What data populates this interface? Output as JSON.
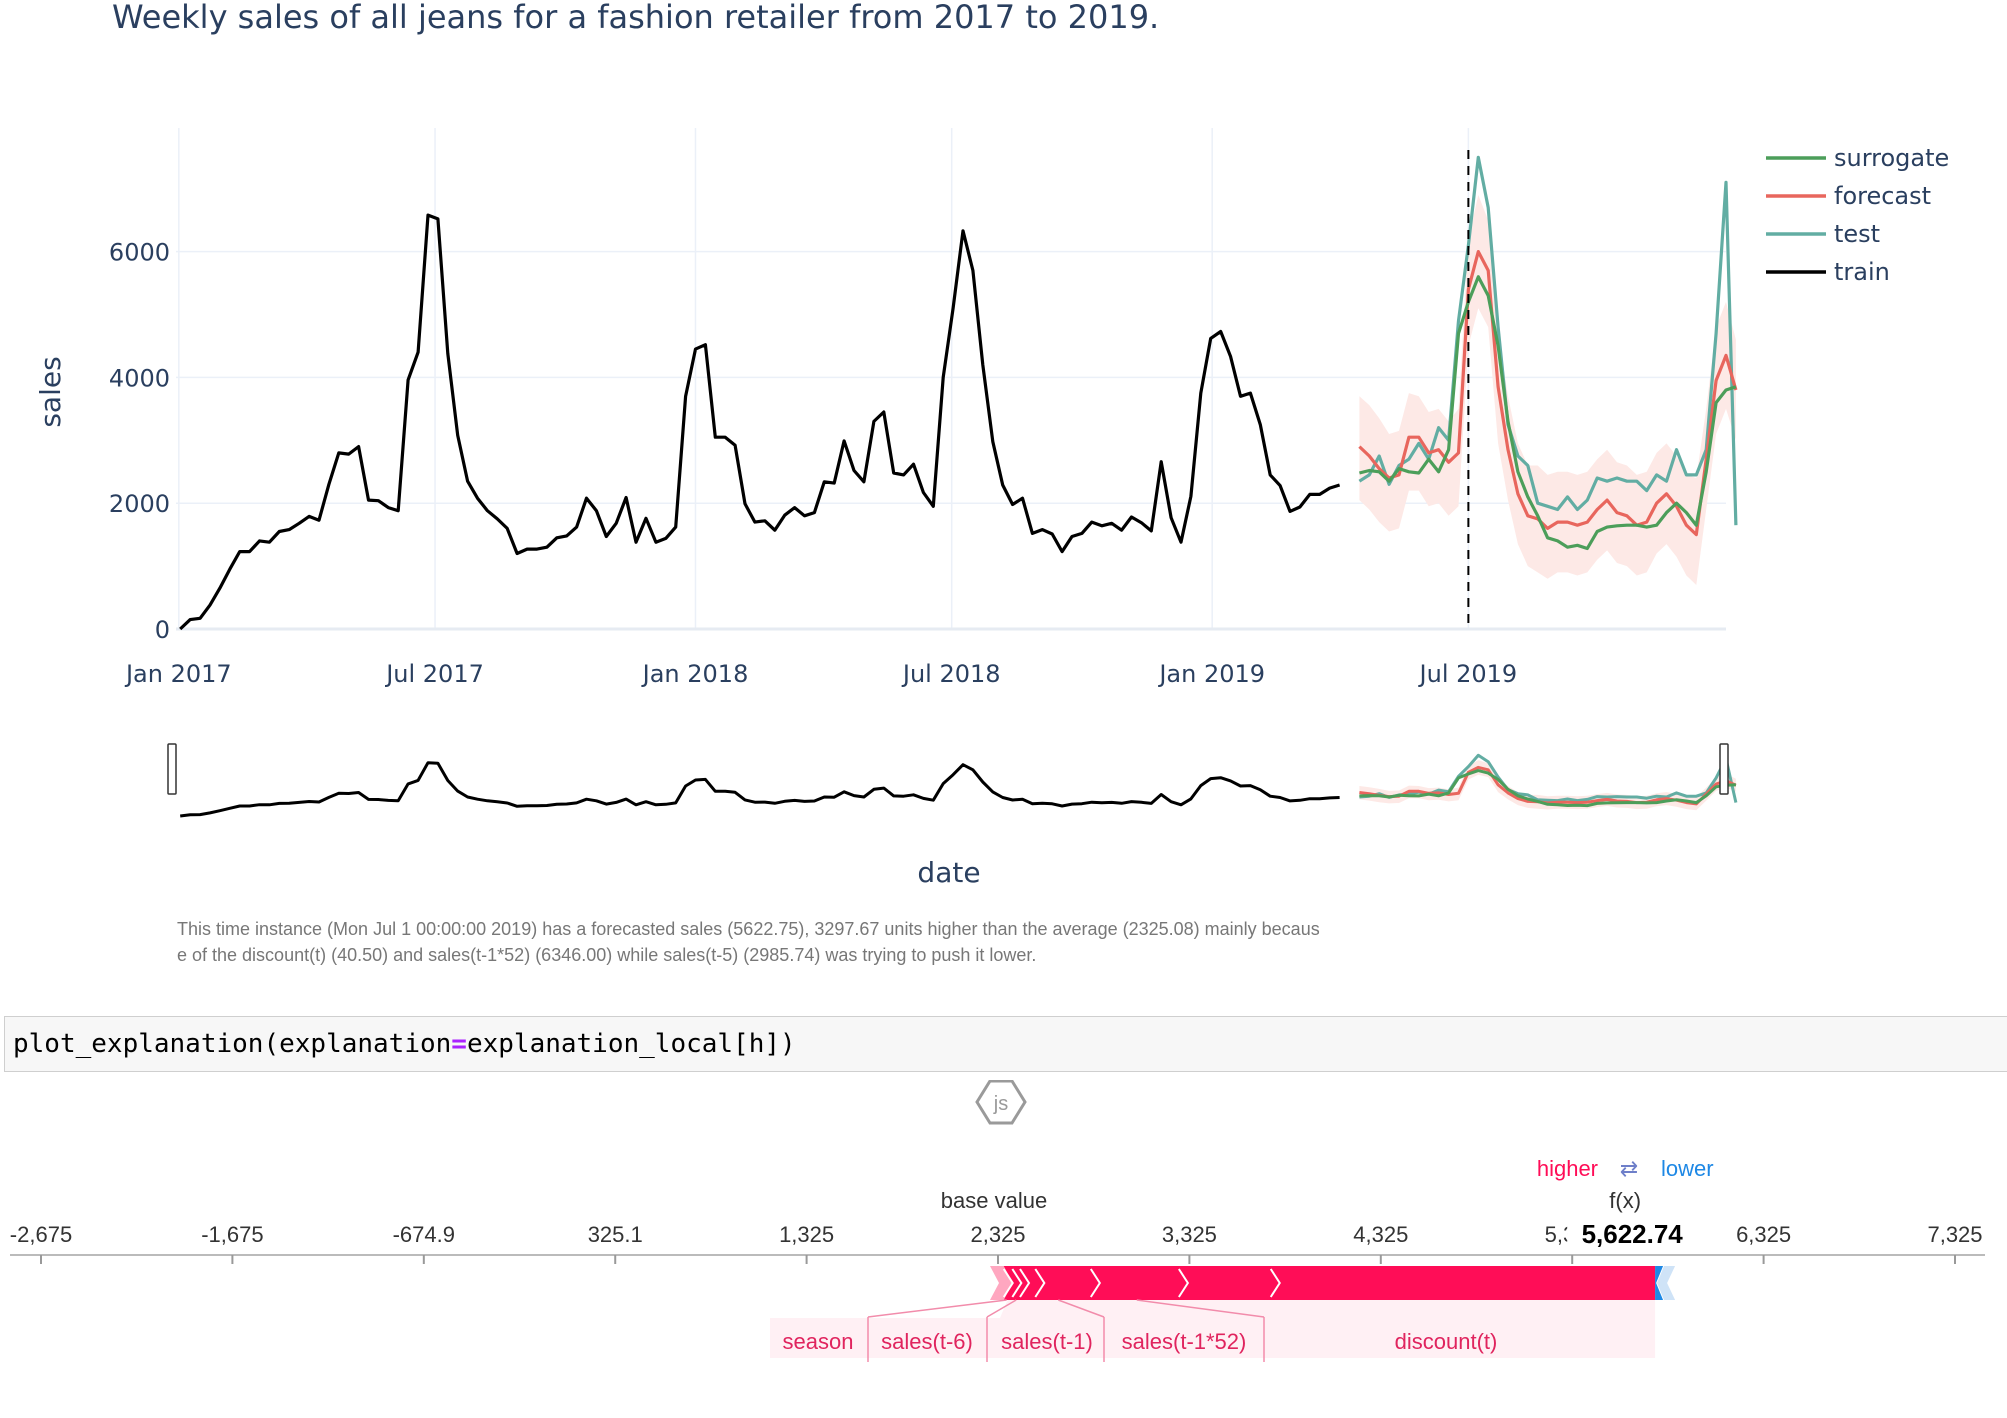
{
  "chart_data": {
    "type": "line",
    "title": "Weekly sales of all jeans for a fashion retailer from 2017 to 2019.",
    "xlabel": "date",
    "ylabel": "sales",
    "xlim": [
      "2016-12-30",
      "2019-12-30"
    ],
    "ylim": [
      -20,
      7900
    ],
    "x_ticks": [
      "Jan 2017",
      "Jul 2017",
      "Jan 2018",
      "Jul 2018",
      "Jan 2019",
      "Jul 2019"
    ],
    "y_ticks": [
      "0",
      "2000",
      "4000",
      "6000"
    ],
    "grid": true,
    "legend_position": "top-right",
    "vline_date": "2019-07-01",
    "series": [
      {
        "name": "surrogate",
        "color": "#4c9e5a",
        "start": "2019-04-15",
        "values": [
          2480,
          2520,
          2500,
          2350,
          2550,
          2500,
          2480,
          2700,
          2500,
          2850,
          4700,
          5200,
          5600,
          5300,
          4500,
          3300,
          2500,
          2100,
          1800,
          1450,
          1400,
          1300,
          1330,
          1280,
          1550,
          1620,
          1640,
          1650,
          1650,
          1620,
          1650,
          1850,
          2000,
          1850,
          1650,
          2500,
          3600,
          3800,
          3850
        ]
      },
      {
        "name": "forecast",
        "color": "#e8665d",
        "start": "2019-04-15",
        "values": [
          2900,
          2750,
          2550,
          2400,
          2450,
          3050,
          3050,
          2800,
          2850,
          2650,
          2800,
          5400,
          6000,
          5700,
          3850,
          2850,
          2150,
          1800,
          1750,
          1600,
          1700,
          1700,
          1650,
          1700,
          1900,
          2050,
          1850,
          1800,
          1650,
          1700,
          2000,
          2150,
          1950,
          1650,
          1500,
          2700,
          3950,
          4350,
          3800
        ]
      },
      {
        "name": "test",
        "color": "#62ada3",
        "start": "2019-04-15",
        "values": [
          2350,
          2450,
          2750,
          2300,
          2600,
          2700,
          2950,
          2700,
          3200,
          3000,
          4900,
          6100,
          7500,
          6700,
          4800,
          3250,
          2750,
          2600,
          2000,
          1950,
          1900,
          2100,
          1900,
          2050,
          2400,
          2350,
          2400,
          2350,
          2350,
          2200,
          2450,
          2350,
          2850,
          2450,
          2450,
          2850,
          4700,
          7100,
          1650
        ]
      },
      {
        "name": "train",
        "color": "#000000",
        "start": "2017-01-02",
        "values": [
          0,
          150,
          170,
          380,
          650,
          950,
          1230,
          1230,
          1400,
          1380,
          1550,
          1580,
          1680,
          1790,
          1730,
          2300,
          2800,
          2780,
          2900,
          2050,
          2040,
          1930,
          1880,
          3960,
          4400,
          6580,
          6520,
          4380,
          3080,
          2350,
          2080,
          1880,
          1750,
          1600,
          1200,
          1270,
          1270,
          1300,
          1450,
          1480,
          1620,
          2080,
          1880,
          1470,
          1680,
          2090,
          1380,
          1760,
          1380,
          1440,
          1620,
          3700,
          4450,
          4520,
          3050,
          3050,
          2920,
          1990,
          1700,
          1720,
          1570,
          1810,
          1930,
          1800,
          1850,
          2340,
          2320,
          2990,
          2520,
          2340,
          3300,
          3450,
          2480,
          2450,
          2620,
          2170,
          1950,
          4000,
          5100,
          6330,
          5700,
          4200,
          2980,
          2290,
          1980,
          2080,
          1520,
          1580,
          1510,
          1230,
          1470,
          1520,
          1700,
          1640,
          1680,
          1570,
          1780,
          1690,
          1560,
          2660,
          1770,
          1380,
          2110,
          3750,
          4620,
          4730,
          4330,
          3700,
          3750,
          3250,
          2450,
          2280,
          1870,
          1940,
          2140,
          2140,
          2240,
          2290
        ]
      }
    ],
    "forecast_band": {
      "color": "#fde9e6",
      "upper": [
        3700,
        3560,
        3350,
        3100,
        3150,
        3750,
        3700,
        3450,
        3500,
        3300,
        3500,
        6200,
        6900,
        6500,
        4700,
        3700,
        2950,
        2600,
        2600,
        2450,
        2500,
        2500,
        2450,
        2500,
        2700,
        2850,
        2650,
        2600,
        2450,
        2500,
        2800,
        2950,
        2750,
        2450,
        2400,
        3500,
        4800,
        5200,
        4600
      ],
      "lower": [
        2050,
        1900,
        1700,
        1550,
        1600,
        2200,
        2200,
        1950,
        2000,
        1800,
        1950,
        4500,
        5100,
        4800,
        2950,
        2050,
        1350,
        1000,
        900,
        800,
        900,
        900,
        850,
        900,
        1100,
        1250,
        1050,
        1000,
        850,
        900,
        1200,
        1350,
        1150,
        850,
        700,
        1900,
        3100,
        3500,
        3000
      ]
    }
  },
  "explanation_text": "This time instance (Mon Jul  1 00:00:00 2019) has a forecasted sales (5622.75), 3297.67 units higher than the average (2325.08) mainly because of the discount(t) (40.50) and sales(t-1*52) (6346.00) while sales(t-5) (2985.74) was trying to push it lower.",
  "code": {
    "before": "plot_explanation(explanation",
    "op": "=",
    "after": "explanation_local[h])"
  },
  "js_badge": "js",
  "force_plot": {
    "higher_label": "higher",
    "lower_label": "lower",
    "swap_symbol": "⇄",
    "base_value_label": "base value",
    "fx_label": "f(x)",
    "fx_value": "5,622.74",
    "base_value": 2325.08,
    "output_value": 5622.74,
    "axis_min": -2675,
    "axis_max": 7325,
    "ticks": [
      -2675,
      -1675,
      -674.9,
      325.1,
      1325,
      2325,
      3325,
      4325,
      5325,
      6325,
      7325
    ],
    "tick_labels": [
      "-2,675",
      "-1,675",
      "-674.9",
      "325.1",
      "1,325",
      "2,325",
      "3,325",
      "4,325",
      "5,325",
      "6,325",
      "7,325"
    ],
    "positive_color": "#ff0d57",
    "negative_color": "#1e88e5",
    "positive_segments": [
      2325,
      2355,
      2400,
      2440,
      2520,
      2810,
      3270,
      3750,
      5758
    ],
    "negative_end": 5622.74,
    "feature_labels": [
      "season",
      "sales(t-6)",
      "sales(t-1)",
      "sales(t-1*52)",
      "discount(t)"
    ]
  }
}
